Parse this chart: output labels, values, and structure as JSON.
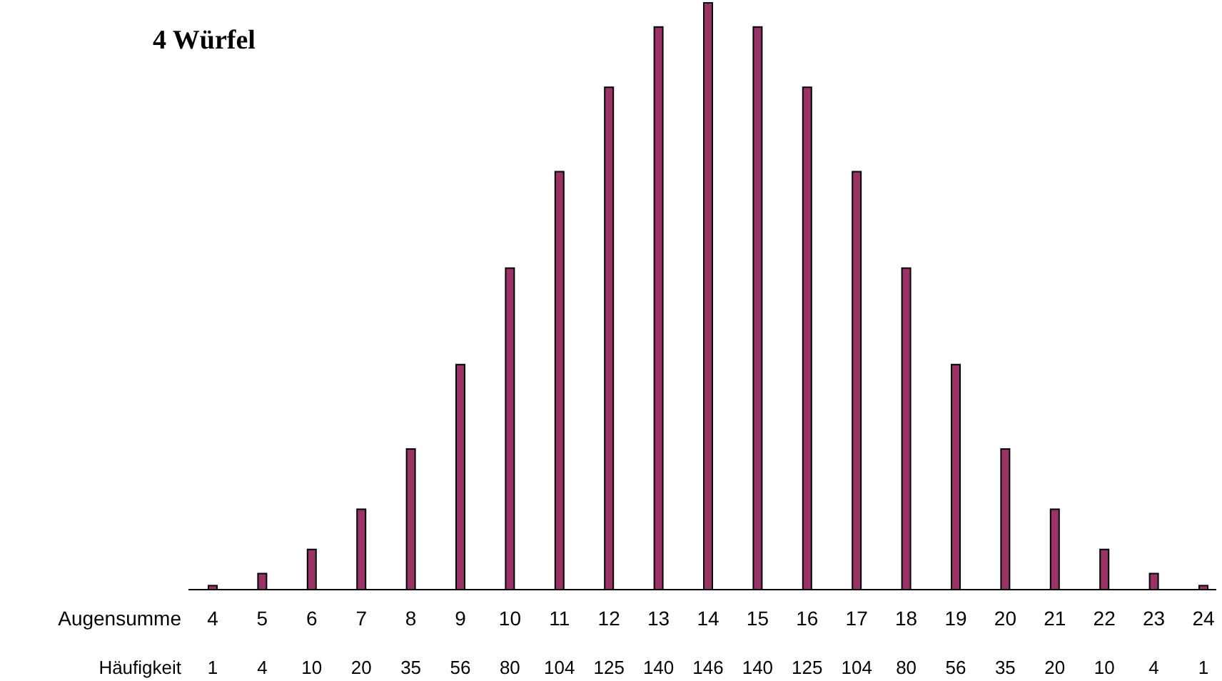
{
  "chart_data": {
    "type": "bar",
    "title": "4 Würfel",
    "xlabel": "Augensumme",
    "ylabel": "Häufigkeit",
    "categories": [
      "4",
      "5",
      "6",
      "7",
      "8",
      "9",
      "10",
      "11",
      "12",
      "13",
      "14",
      "15",
      "16",
      "17",
      "18",
      "19",
      "20",
      "21",
      "22",
      "23",
      "24"
    ],
    "values": [
      1,
      4,
      10,
      20,
      35,
      56,
      80,
      104,
      125,
      140,
      146,
      140,
      125,
      104,
      80,
      56,
      35,
      20,
      10,
      4,
      1
    ],
    "color": "#993366",
    "data_labels": true
  }
}
